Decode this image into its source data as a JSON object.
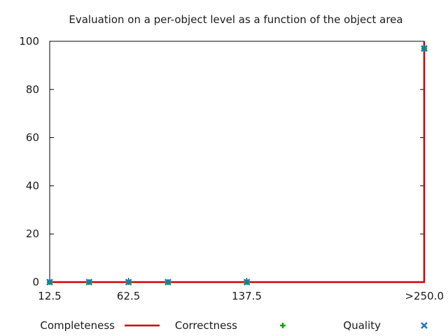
{
  "chart_data": {
    "type": "scatter",
    "title": "Evaluation on a per-object level as a function of the object area",
    "xlabel": "",
    "ylabel": "",
    "x_tick_labels": [
      "12.5",
      "62.5",
      "137.5",
      ">250.0"
    ],
    "x_tick_values": [
      12.5,
      62.5,
      137.5,
      250.0
    ],
    "y_ticks": [
      0,
      20,
      40,
      60,
      80,
      100
    ],
    "xlim": [
      12.5,
      250.0
    ],
    "ylim": [
      0,
      100
    ],
    "grid": false,
    "legend_position": "bottom",
    "series": [
      {
        "name": "Completeness",
        "style": "line",
        "color": "#cc0000",
        "points": [
          [
            12.5,
            0
          ],
          [
            37.5,
            0
          ],
          [
            62.5,
            0
          ],
          [
            87.5,
            0
          ],
          [
            137.5,
            0
          ],
          [
            250.0,
            0
          ],
          [
            250.0,
            100
          ]
        ]
      },
      {
        "name": "Correctness",
        "style": "plus",
        "color": "#00aa00",
        "points": [
          [
            12.5,
            0
          ],
          [
            37.5,
            0
          ],
          [
            62.5,
            0
          ],
          [
            87.5,
            0
          ],
          [
            137.5,
            0
          ],
          [
            250.0,
            97
          ]
        ]
      },
      {
        "name": "Quality",
        "style": "cross",
        "color": "#1a77c9",
        "points": [
          [
            12.5,
            0
          ],
          [
            37.5,
            0
          ],
          [
            62.5,
            0
          ],
          [
            87.5,
            0
          ],
          [
            137.5,
            0
          ],
          [
            250.0,
            97
          ]
        ]
      }
    ]
  }
}
